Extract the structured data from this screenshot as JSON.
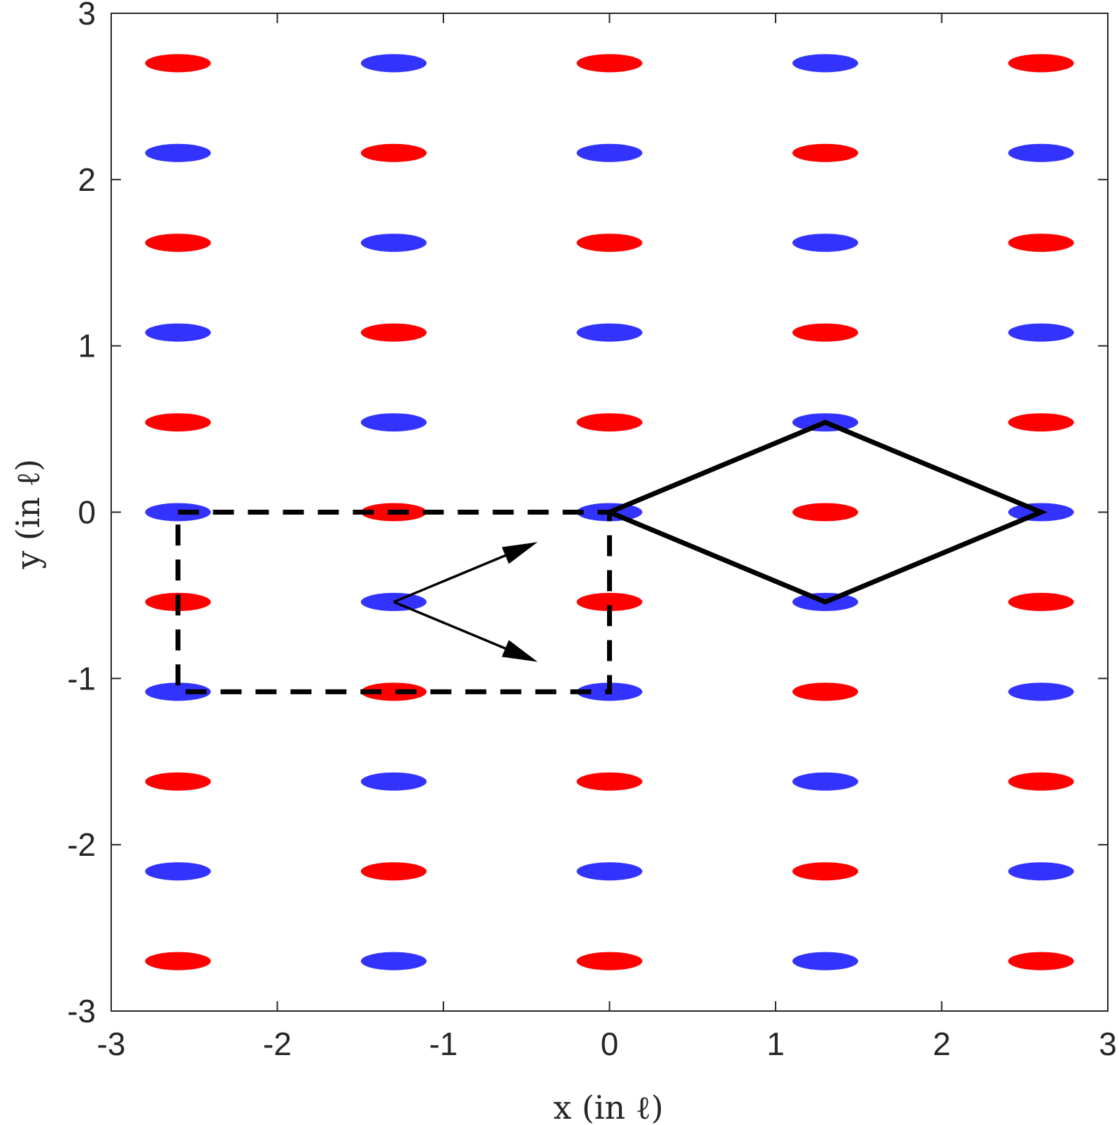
{
  "chart_data": {
    "type": "scatter",
    "title": "",
    "xlabel": "x (in ℓ)",
    "ylabel": "y (in ℓ)",
    "xlim": [
      -3,
      3
    ],
    "ylim": [
      -3,
      3
    ],
    "xticks": [
      "-3",
      "-2",
      "-1",
      "0",
      "1",
      "2",
      "3"
    ],
    "yticks": [
      "-3",
      "-2",
      "-1",
      "0",
      "1",
      "2",
      "3"
    ],
    "grid": false,
    "legend": "none",
    "marker": "ellipse",
    "colors": {
      "red": "#ff0000",
      "blue": "#3333ff",
      "line": "#000000"
    },
    "columns_x": [
      -2.598,
      -1.299,
      0.0,
      1.299,
      2.598
    ],
    "rows_y": [
      2.7,
      2.16,
      1.62,
      1.08,
      0.54,
      0.0,
      -0.54,
      -1.08,
      -1.62,
      -2.16,
      -2.7
    ],
    "column_top_color": [
      "red",
      "blue",
      "red",
      "blue",
      "red"
    ],
    "rhombus": [
      [
        0,
        0
      ],
      [
        1.299,
        0.54
      ],
      [
        2.598,
        0
      ],
      [
        1.299,
        -0.54
      ]
    ],
    "dashed_rectangle": [
      [
        -2.598,
        0
      ],
      [
        0,
        0
      ],
      [
        0,
        -1.08
      ],
      [
        -2.598,
        -1.08
      ]
    ],
    "arrows": [
      {
        "from": [
          -1.299,
          -0.54
        ],
        "to": [
          -0.433,
          -0.18
        ]
      },
      {
        "from": [
          -1.299,
          -0.54
        ],
        "to": [
          -0.433,
          -0.9
        ]
      }
    ]
  }
}
